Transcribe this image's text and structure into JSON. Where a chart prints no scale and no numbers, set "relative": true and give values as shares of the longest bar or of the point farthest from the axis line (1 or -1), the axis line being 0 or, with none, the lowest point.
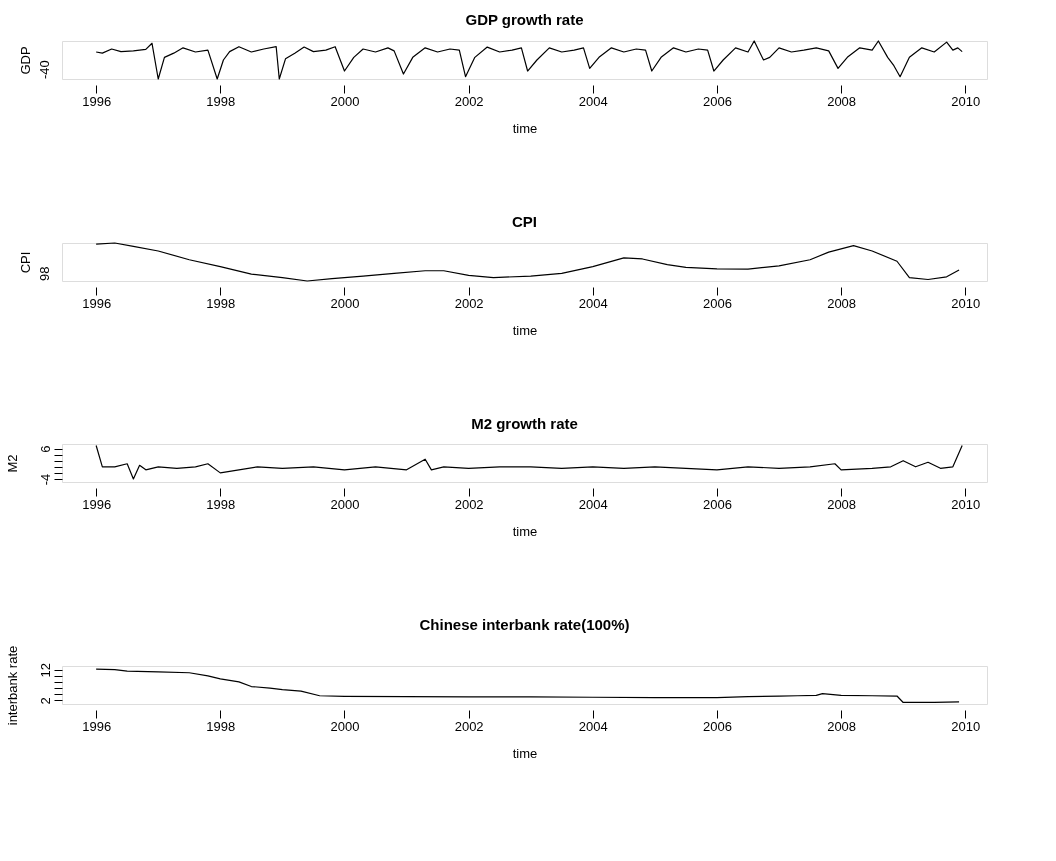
{
  "chart_data": [
    {
      "type": "line",
      "title": "GDP growth rate",
      "xlabel": "time",
      "ylabel": "GDP",
      "relative": true,
      "annotations": [
        "-40"
      ],
      "xlim": [
        1995.45,
        2010.35
      ],
      "xticks": [
        1996,
        1998,
        2000,
        2002,
        2004,
        2006,
        2008,
        2010
      ],
      "grid": false,
      "line_style": "solid",
      "marker": "none",
      "series": [
        {
          "color": "#000000",
          "x": [
            1996.0,
            1996.1,
            1996.25,
            1996.4,
            1996.6,
            1996.8,
            1996.9,
            1997.0,
            1997.1,
            1997.25,
            1997.4,
            1997.6,
            1997.8,
            1997.95,
            1998.05,
            1998.15,
            1998.3,
            1998.5,
            1998.7,
            1998.9,
            1998.95,
            1999.05,
            1999.2,
            1999.35,
            1999.5,
            1999.7,
            1999.85,
            2000.0,
            2000.15,
            2000.3,
            2000.5,
            2000.7,
            2000.8,
            2000.95,
            2001.1,
            2001.3,
            2001.5,
            2001.7,
            2001.85,
            2001.95,
            2002.1,
            2002.3,
            2002.5,
            2002.7,
            2002.85,
            2002.95,
            2003.1,
            2003.3,
            2003.5,
            2003.7,
            2003.85,
            2003.95,
            2004.1,
            2004.3,
            2004.5,
            2004.7,
            2004.85,
            2004.95,
            2005.1,
            2005.3,
            2005.5,
            2005.7,
            2005.85,
            2005.95,
            2006.1,
            2006.3,
            2006.5,
            2006.6,
            2006.75,
            2006.85,
            2007.0,
            2007.2,
            2007.4,
            2007.6,
            2007.8,
            2007.95,
            2008.1,
            2008.3,
            2008.5,
            2008.6,
            2008.75,
            2008.85,
            2008.95,
            2009.1,
            2009.3,
            2009.5,
            2009.7,
            2009.8,
            2009.88,
            2009.95
          ],
          "values": [
            0.71,
            0.68,
            0.79,
            0.72,
            0.74,
            0.78,
            0.94,
            0,
            0.57,
            0.68,
            0.82,
            0.71,
            0.76,
            0,
            0.5,
            0.72,
            0.85,
            0.71,
            0.79,
            0.85,
            0,
            0.53,
            0.68,
            0.84,
            0.72,
            0.76,
            0.85,
            0.21,
            0.57,
            0.79,
            0.71,
            0.82,
            0.74,
            0.13,
            0.57,
            0.82,
            0.71,
            0.79,
            0.76,
            0.06,
            0.57,
            0.84,
            0.71,
            0.76,
            0.82,
            0.21,
            0.5,
            0.82,
            0.71,
            0.76,
            0.82,
            0.28,
            0.57,
            0.82,
            0.71,
            0.79,
            0.76,
            0.21,
            0.57,
            0.82,
            0.71,
            0.79,
            0.76,
            0.21,
            0.5,
            0.82,
            0.71,
            1,
            0.5,
            0.57,
            0.82,
            0.71,
            0.76,
            0.82,
            0.74,
            0.28,
            0.57,
            0.82,
            0.76,
            1,
            0.57,
            0.35,
            0.06,
            0.57,
            0.82,
            0.71,
            0.97,
            0.76,
            0.82,
            0.72
          ]
        }
      ]
    },
    {
      "type": "line",
      "title": "CPI",
      "xlabel": "time",
      "ylabel": "CPI",
      "relative": true,
      "annotations": [
        "98"
      ],
      "xlim": [
        1995.45,
        2010.35
      ],
      "xticks": [
        1996,
        1998,
        2000,
        2002,
        2004,
        2006,
        2008,
        2010
      ],
      "grid": false,
      "line_style": "solid",
      "marker": "none",
      "series": [
        {
          "color": "#000000",
          "x": [
            1996.0,
            1996.3,
            1996.6,
            1997.0,
            1997.5,
            1998.0,
            1998.5,
            1999.0,
            1999.4,
            1999.8,
            2000.3,
            2000.8,
            2001.3,
            2001.6,
            2002.0,
            2002.4,
            2003.0,
            2003.5,
            2004.0,
            2004.5,
            2004.8,
            2005.2,
            2005.5,
            2006.0,
            2006.5,
            2007.0,
            2007.5,
            2007.8,
            2008.2,
            2008.5,
            2008.9,
            2009.1,
            2009.4,
            2009.7,
            2009.9
          ],
          "values": [
            0.97,
            1,
            0.91,
            0.79,
            0.56,
            0.38,
            0.18,
            0.09,
            0,
            0.06,
            0.13,
            0.2,
            0.27,
            0.27,
            0.15,
            0.09,
            0.13,
            0.2,
            0.38,
            0.61,
            0.58,
            0.43,
            0.36,
            0.32,
            0.31,
            0.4,
            0.56,
            0.76,
            0.93,
            0.79,
            0.52,
            0.09,
            0.04,
            0.11,
            0.29
          ]
        }
      ]
    },
    {
      "type": "line",
      "title": "M2 growth rate",
      "xlabel": "time",
      "ylabel": "M2",
      "xlim": [
        1995.45,
        2010.35
      ],
      "xticks": [
        1996,
        1998,
        2000,
        2002,
        2004,
        2006,
        2008,
        2010
      ],
      "ylim": [
        -5,
        7.5
      ],
      "yticks": [
        -4,
        {
          "value": -2,
          "label": null
        },
        {
          "value": 0,
          "label": null
        },
        {
          "value": 2,
          "label": null
        },
        {
          "value": 4,
          "label": null
        },
        6
      ],
      "grid": false,
      "line_style": "solid",
      "marker": "none",
      "series": [
        {
          "color": "#000000",
          "x": [
            1996.0,
            1996.1,
            1996.3,
            1996.5,
            1996.6,
            1996.7,
            1996.8,
            1997.0,
            1997.3,
            1997.6,
            1997.8,
            1998.0,
            1998.3,
            1998.6,
            1999.0,
            1999.5,
            2000.0,
            2000.5,
            2001.0,
            2001.3,
            2001.4,
            2001.6,
            2002.0,
            2002.5,
            2003.0,
            2003.5,
            2004.0,
            2004.5,
            2005.0,
            2005.5,
            2006.0,
            2006.5,
            2007.0,
            2007.5,
            2007.9,
            2008.0,
            2008.5,
            2008.8,
            2009.0,
            2009.2,
            2009.4,
            2009.6,
            2009.8,
            2009.95
          ],
          "values": [
            7,
            0,
            0,
            1,
            -4,
            0.5,
            -1,
            0,
            -0.5,
            0,
            1,
            -2,
            -1,
            0,
            -0.5,
            0,
            -1,
            0,
            -1,
            2.5,
            -1,
            0,
            -0.5,
            0,
            0,
            -0.5,
            0,
            -0.5,
            0,
            -0.5,
            -1,
            0,
            -0.5,
            0,
            1,
            -1,
            -0.5,
            0,
            2,
            0,
            1.5,
            -0.5,
            0,
            7
          ]
        }
      ]
    },
    {
      "type": "line",
      "title": "Chinese interbank rate(100%)",
      "xlabel": "time",
      "ylabel": "interbank rate",
      "xlim": [
        1995.45,
        2010.35
      ],
      "xticks": [
        1996,
        1998,
        2000,
        2002,
        2004,
        2006,
        2008,
        2010
      ],
      "ylim": [
        0.8,
        13.2
      ],
      "yticks": [
        2,
        {
          "value": 4,
          "label": null
        },
        {
          "value": 6,
          "label": null
        },
        {
          "value": 8,
          "label": null
        },
        {
          "value": 10,
          "label": null
        },
        12
      ],
      "grid": false,
      "line_style": "solid",
      "marker": "none",
      "series": [
        {
          "color": "#000000",
          "x": [
            1996.0,
            1996.3,
            1996.5,
            1997.0,
            1997.5,
            1997.8,
            1998.0,
            1998.3,
            1998.5,
            1998.8,
            1999.0,
            1999.3,
            1999.6,
            2000.0,
            2001.0,
            2002.0,
            2003.0,
            2004.0,
            2005.0,
            2006.0,
            2006.5,
            2007.0,
            2007.3,
            2007.6,
            2007.7,
            2008.0,
            2008.5,
            2008.9,
            2009.0,
            2009.5,
            2009.9
          ],
          "values": [
            12.2,
            12,
            11.5,
            11.3,
            11,
            10,
            9,
            8,
            6.5,
            6,
            5.5,
            5,
            3.5,
            3.3,
            3.2,
            3.1,
            3.1,
            3,
            2.9,
            2.9,
            3.2,
            3.4,
            3.5,
            3.6,
            4.2,
            3.6,
            3.5,
            3.4,
            1.3,
            1.3,
            1.5
          ]
        }
      ]
    }
  ]
}
